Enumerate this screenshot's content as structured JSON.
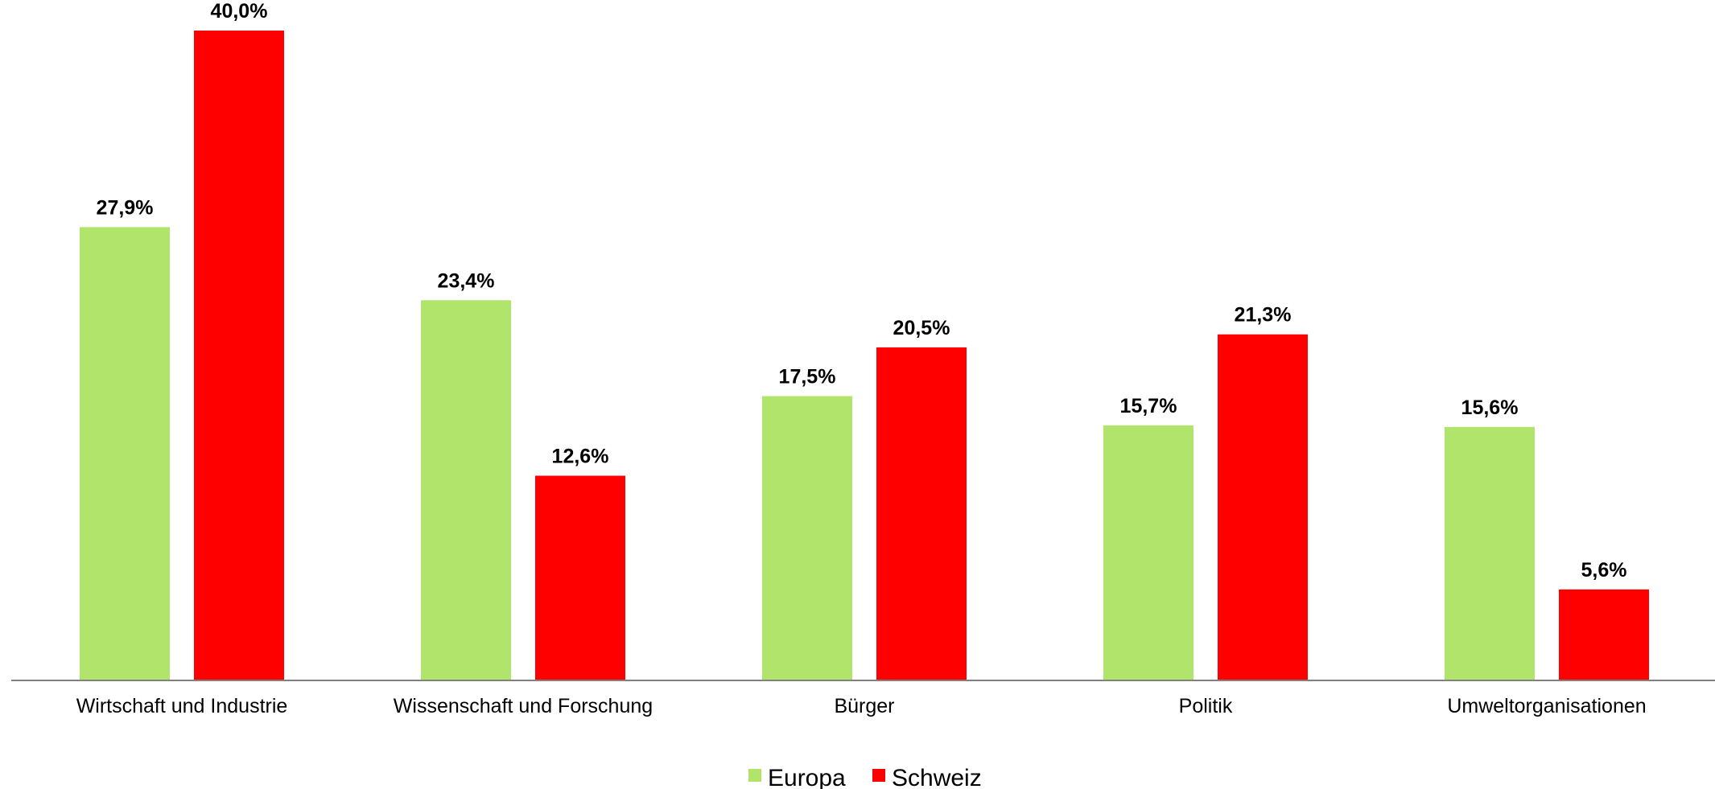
{
  "chart_data": {
    "type": "bar",
    "categories": [
      "Wirtschaft und Industrie",
      "Wissenschaft und Forschung",
      "Bürger",
      "Politik",
      "Umweltorganisationen"
    ],
    "series": [
      {
        "name": "Europa",
        "color": "#b0e46a",
        "values": [
          27.9,
          23.4,
          17.5,
          15.7,
          15.6
        ],
        "labels": [
          "27,9%",
          "23,4%",
          "17,5%",
          "15,7%",
          "15,6%"
        ]
      },
      {
        "name": "Schweiz",
        "color": "#ff0000",
        "values": [
          40.0,
          12.6,
          20.5,
          21.3,
          5.6
        ],
        "labels": [
          "40,0%",
          "12,6%",
          "20,5%",
          "21,3%",
          "5,6%"
        ]
      }
    ],
    "ylim": [
      0,
      42
    ],
    "grid": false,
    "legend_position": "bottom-center"
  }
}
